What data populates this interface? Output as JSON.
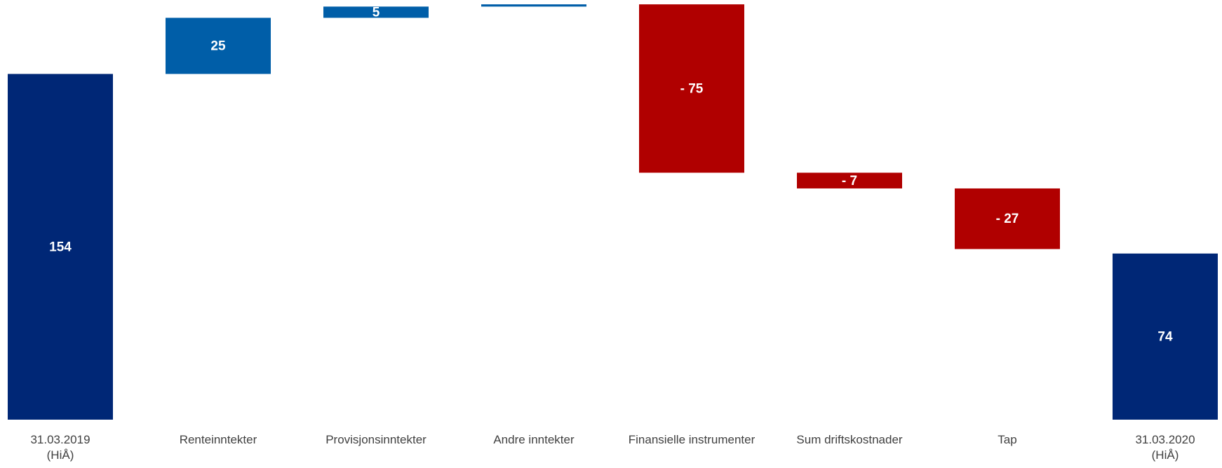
{
  "chart_data": {
    "type": "waterfall",
    "categories": [
      "31.03.2019\n(HiÅ)",
      "Renteinntekter",
      "Provisjonsinntekter",
      "Andre inntekter",
      "Finansielle instrumenter",
      "Sum driftskostnader",
      "Tap",
      "31.03.2020\n(HiÅ)"
    ],
    "values": [
      154,
      25,
      5,
      1,
      -75,
      -7,
      -27,
      74
    ],
    "value_labels": [
      "154",
      "25",
      "5",
      null,
      "- 75",
      "- 7",
      "- 27",
      "74"
    ],
    "measure": [
      "absolute",
      "relative",
      "relative",
      "relative",
      "relative",
      "relative",
      "relative",
      "total"
    ],
    "colors": {
      "total": "#002776",
      "increase": "#005ea8",
      "decrease": "#b00000"
    },
    "ylim": [
      0,
      186
    ]
  }
}
